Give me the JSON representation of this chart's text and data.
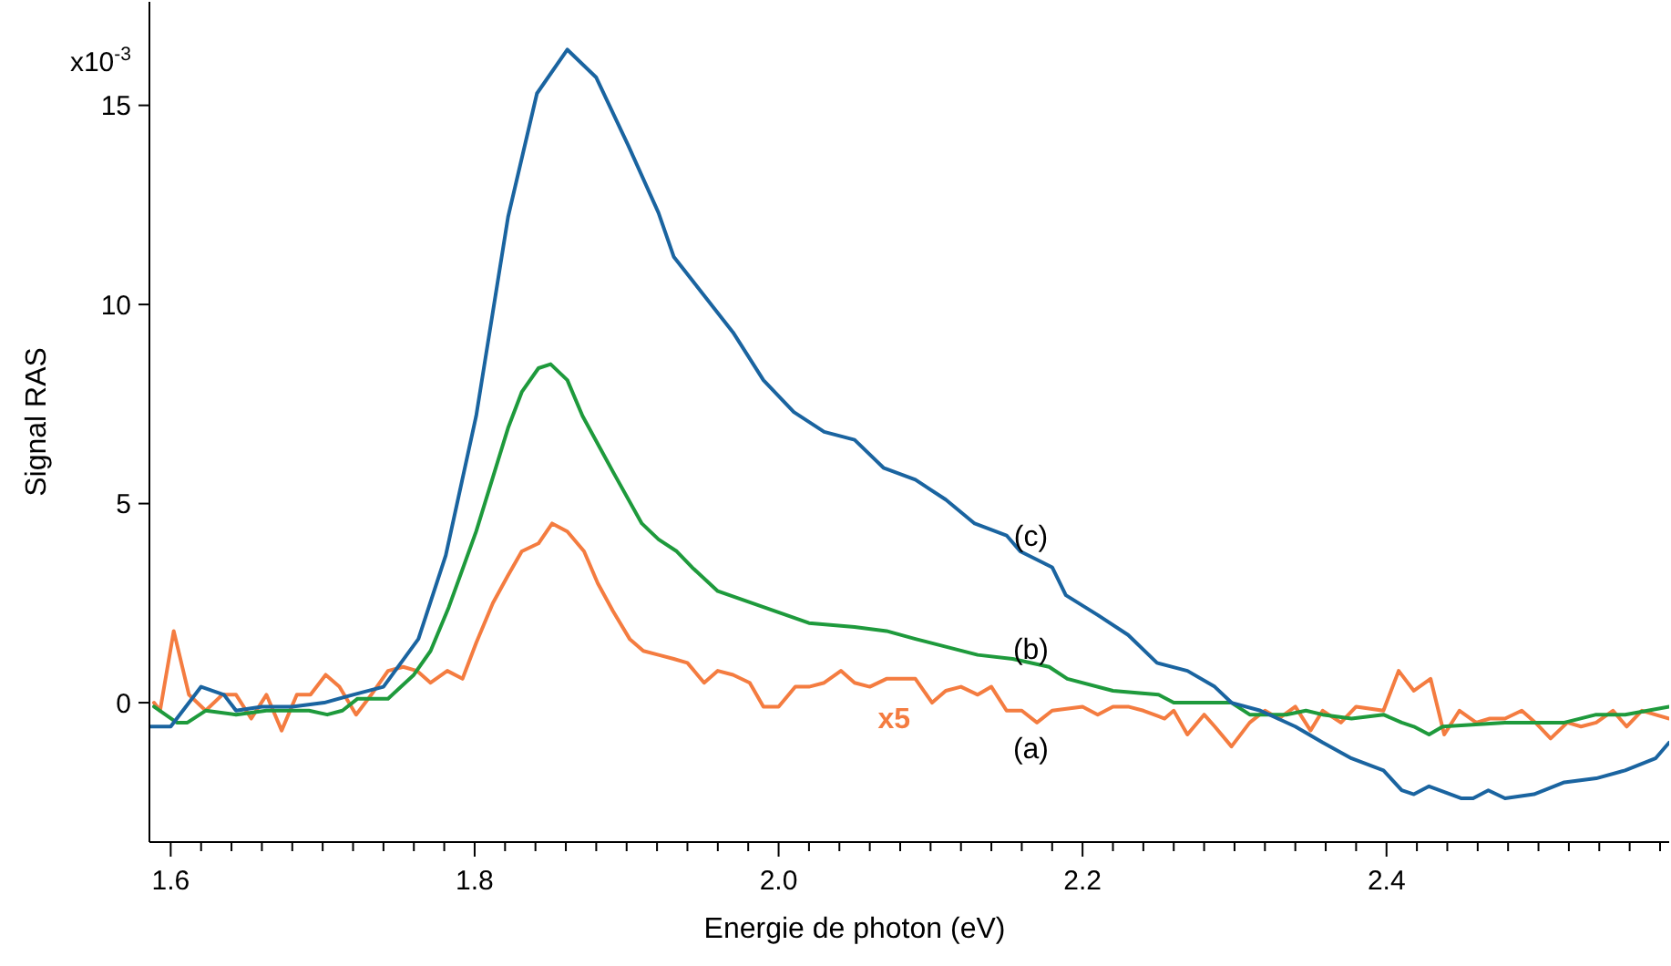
{
  "chart_data": {
    "type": "line",
    "xlabel": "Energie de photon (eV)",
    "ylabel": "Signal RAS",
    "xlim": [
      1.586,
      2.586
    ],
    "ylim": [
      -3.5,
      17.6
    ],
    "xticks": [
      1.6,
      {
        "value": 1.62,
        "label": null
      },
      {
        "value": 1.64,
        "label": null
      },
      {
        "value": 1.66,
        "label": null
      },
      {
        "value": 1.68,
        "label": null
      },
      {
        "value": 1.7,
        "label": null
      },
      {
        "value": 1.72,
        "label": null
      },
      {
        "value": 1.74,
        "label": null
      },
      {
        "value": 1.76,
        "label": null
      },
      {
        "value": 1.78,
        "label": null
      },
      1.8,
      {
        "value": 1.82,
        "label": null
      },
      {
        "value": 1.84,
        "label": null
      },
      {
        "value": 1.86,
        "label": null
      },
      {
        "value": 1.88,
        "label": null
      },
      {
        "value": 1.9,
        "label": null
      },
      {
        "value": 1.92,
        "label": null
      },
      {
        "value": 1.94,
        "label": null
      },
      {
        "value": 1.96,
        "label": null
      },
      {
        "value": 1.98,
        "label": null
      },
      {
        "value": 2.0,
        "label": "2.0"
      },
      {
        "value": 2.02,
        "label": null
      },
      {
        "value": 2.04,
        "label": null
      },
      {
        "value": 2.06,
        "label": null
      },
      {
        "value": 2.08,
        "label": null
      },
      {
        "value": 2.1,
        "label": null
      },
      {
        "value": 2.12,
        "label": null
      },
      {
        "value": 2.14,
        "label": null
      },
      {
        "value": 2.16,
        "label": null
      },
      {
        "value": 2.18,
        "label": null
      },
      2.2,
      {
        "value": 2.22,
        "label": null
      },
      {
        "value": 2.24,
        "label": null
      },
      {
        "value": 2.26,
        "label": null
      },
      {
        "value": 2.28,
        "label": null
      },
      {
        "value": 2.3,
        "label": null
      },
      {
        "value": 2.32,
        "label": null
      },
      {
        "value": 2.34,
        "label": null
      },
      {
        "value": 2.36,
        "label": null
      },
      {
        "value": 2.38,
        "label": null
      },
      2.4,
      {
        "value": 2.42,
        "label": null
      },
      {
        "value": 2.44,
        "label": null
      },
      {
        "value": 2.46,
        "label": null
      },
      {
        "value": 2.48,
        "label": null
      },
      {
        "value": 2.5,
        "label": null
      },
      {
        "value": 2.52,
        "label": null
      },
      {
        "value": 2.54,
        "label": null
      },
      {
        "value": 2.56,
        "label": null
      },
      {
        "value": 2.58,
        "label": null
      }
    ],
    "yticks": [
      0,
      5,
      10,
      15
    ],
    "series": [
      {
        "name": "(a)",
        "color": "#f47c40",
        "x": [
          1.589,
          1.593,
          1.602,
          1.612,
          1.623,
          1.634,
          1.643,
          1.653,
          1.663,
          1.673,
          1.683,
          1.692,
          1.702,
          1.711,
          1.722,
          1.732,
          1.743,
          1.753,
          1.762,
          1.771,
          1.782,
          1.792,
          1.801,
          1.812,
          1.822,
          1.831,
          1.842,
          1.851,
          1.861,
          1.872,
          1.881,
          1.891,
          1.902,
          1.911,
          1.921,
          1.931,
          1.94,
          1.951,
          1.96,
          1.97,
          1.981,
          1.99,
          2.0,
          2.011,
          2.02,
          2.03,
          2.041,
          2.05,
          2.06,
          2.071,
          2.08,
          2.09,
          2.101,
          2.11,
          2.12,
          2.131,
          2.14,
          2.15,
          2.16,
          2.17,
          2.18,
          2.2,
          2.21,
          2.22,
          2.23,
          2.24,
          2.254,
          2.26,
          2.269,
          2.28,
          2.287,
          2.298,
          2.31,
          2.32,
          2.329,
          2.34,
          2.35,
          2.358,
          2.37,
          2.38,
          2.398,
          2.408,
          2.418,
          2.429,
          2.438,
          2.448,
          2.459,
          2.468,
          2.478,
          2.489,
          2.498,
          2.508,
          2.519,
          2.528,
          2.538,
          2.549,
          2.558,
          2.568,
          2.586
        ],
        "values": [
          0.0,
          -0.2,
          1.8,
          0.2,
          -0.2,
          0.2,
          0.2,
          -0.4,
          0.2,
          -0.7,
          0.2,
          0.2,
          0.7,
          0.4,
          -0.3,
          0.2,
          0.8,
          0.9,
          0.8,
          0.5,
          0.8,
          0.6,
          1.5,
          2.5,
          3.2,
          3.8,
          4.0,
          4.5,
          4.3,
          3.8,
          3.0,
          2.3,
          1.6,
          1.3,
          1.2,
          1.1,
          1.0,
          0.5,
          0.8,
          0.7,
          0.5,
          -0.1,
          -0.1,
          0.4,
          0.4,
          0.5,
          0.8,
          0.5,
          0.4,
          0.6,
          0.6,
          0.6,
          0.0,
          0.3,
          0.4,
          0.2,
          0.4,
          -0.2,
          -0.2,
          -0.5,
          -0.2,
          -0.1,
          -0.3,
          -0.1,
          -0.1,
          -0.2,
          -0.4,
          -0.2,
          -0.8,
          -0.3,
          -0.6,
          -1.1,
          -0.5,
          -0.2,
          -0.4,
          -0.1,
          -0.7,
          -0.2,
          -0.5,
          -0.1,
          -0.2,
          0.8,
          0.3,
          0.6,
          -0.8,
          -0.2,
          -0.5,
          -0.4,
          -0.4,
          -0.2,
          -0.5,
          -0.9,
          -0.5,
          -0.6,
          -0.5,
          -0.2,
          -0.6,
          -0.2,
          -0.4
        ]
      },
      {
        "name": "(b)",
        "color": "#1e9a3c",
        "x": [
          1.589,
          1.604,
          1.611,
          1.623,
          1.643,
          1.663,
          1.691,
          1.703,
          1.713,
          1.723,
          1.743,
          1.76,
          1.771,
          1.783,
          1.801,
          1.822,
          1.831,
          1.842,
          1.85,
          1.861,
          1.871,
          1.891,
          1.91,
          1.921,
          1.933,
          1.943,
          1.96,
          1.99,
          2.02,
          2.05,
          2.071,
          2.09,
          2.131,
          2.154,
          2.178,
          2.19,
          2.22,
          2.25,
          2.26,
          2.269,
          2.278,
          2.298,
          2.31,
          2.334,
          2.347,
          2.358,
          2.377,
          2.398,
          2.41,
          2.418,
          2.428,
          2.437,
          2.478,
          2.497,
          2.517,
          2.538,
          2.557,
          2.586
        ],
        "values": [
          -0.1,
          -0.5,
          -0.5,
          -0.2,
          -0.3,
          -0.2,
          -0.2,
          -0.3,
          -0.2,
          0.1,
          0.1,
          0.7,
          1.3,
          2.4,
          4.3,
          6.9,
          7.8,
          8.4,
          8.5,
          8.1,
          7.2,
          5.8,
          4.5,
          4.1,
          3.8,
          3.4,
          2.8,
          2.4,
          2.0,
          1.9,
          1.8,
          1.6,
          1.2,
          1.1,
          0.9,
          0.6,
          0.3,
          0.2,
          0.0,
          0.0,
          0.0,
          0.0,
          -0.3,
          -0.3,
          -0.2,
          -0.3,
          -0.4,
          -0.3,
          -0.5,
          -0.6,
          -0.8,
          -0.6,
          -0.5,
          -0.5,
          -0.5,
          -0.3,
          -0.3,
          -0.1
        ]
      },
      {
        "name": "(c)",
        "color": "#1a64a0",
        "x": [
          1.586,
          1.6,
          1.62,
          1.635,
          1.643,
          1.66,
          1.68,
          1.701,
          1.72,
          1.74,
          1.763,
          1.781,
          1.801,
          1.822,
          1.841,
          1.861,
          1.88,
          1.901,
          1.921,
          1.931,
          1.97,
          1.99,
          2.01,
          2.03,
          2.05,
          2.069,
          2.09,
          2.11,
          2.129,
          2.15,
          2.159,
          2.18,
          2.189,
          2.21,
          2.23,
          2.249,
          2.269,
          2.287,
          2.298,
          2.317,
          2.34,
          2.358,
          2.377,
          2.398,
          2.41,
          2.418,
          2.428,
          2.449,
          2.457,
          2.467,
          2.478,
          2.497,
          2.517,
          2.538,
          2.557,
          2.577,
          2.586
        ],
        "values": [
          -0.6,
          -0.6,
          0.4,
          0.2,
          -0.2,
          -0.1,
          -0.1,
          0.0,
          0.2,
          0.4,
          1.6,
          3.7,
          7.2,
          12.2,
          15.3,
          16.4,
          15.7,
          14.0,
          12.3,
          11.2,
          9.3,
          8.1,
          7.3,
          6.8,
          6.6,
          5.9,
          5.6,
          5.1,
          4.5,
          4.2,
          3.8,
          3.4,
          2.7,
          2.2,
          1.7,
          1.0,
          0.8,
          0.4,
          0.0,
          -0.2,
          -0.6,
          -1.0,
          -1.4,
          -1.7,
          -2.2,
          -2.3,
          -2.1,
          -2.4,
          -2.4,
          -2.2,
          -2.4,
          -2.3,
          -2.0,
          -1.9,
          -1.7,
          -1.4,
          -1.0
        ]
      }
    ],
    "annotations": [
      "x5",
      "x10$^{-3}$"
    ]
  }
}
